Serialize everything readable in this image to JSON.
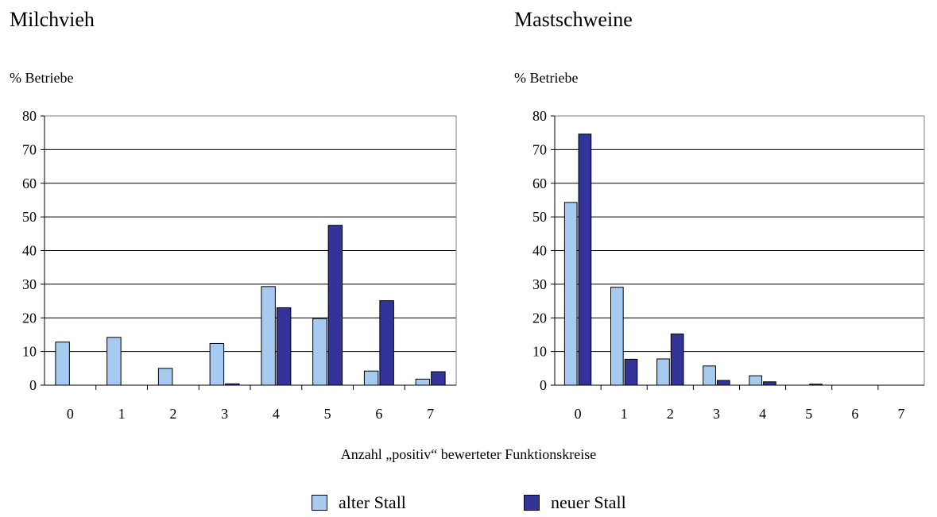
{
  "chart_data": [
    {
      "type": "bar",
      "title": "Milchvieh",
      "ylabel": "% Betriebe",
      "categories": [
        "0",
        "1",
        "2",
        "3",
        "4",
        "5",
        "6",
        "7"
      ],
      "ylim": [
        0,
        80
      ],
      "yticks": [
        0,
        10,
        20,
        30,
        40,
        50,
        60,
        70,
        80
      ],
      "series": [
        {
          "name": "alter Stall",
          "values": [
            12.8,
            14.2,
            5.0,
            12.4,
            29.3,
            19.8,
            4.2,
            1.8
          ]
        },
        {
          "name": "neuer Stall",
          "values": [
            0,
            0,
            0,
            0.4,
            23.0,
            47.5,
            25.1,
            4.0
          ]
        }
      ]
    },
    {
      "type": "bar",
      "title": "Mastschweine",
      "ylabel": "% Betriebe",
      "categories": [
        "0",
        "1",
        "2",
        "3",
        "4",
        "5",
        "6",
        "7"
      ],
      "ylim": [
        0,
        80
      ],
      "yticks": [
        0,
        10,
        20,
        30,
        40,
        50,
        60,
        70,
        80
      ],
      "series": [
        {
          "name": "alter Stall",
          "values": [
            54.3,
            29.1,
            7.8,
            5.7,
            2.8,
            0,
            0,
            0
          ]
        },
        {
          "name": "neuer Stall",
          "values": [
            74.6,
            7.7,
            15.2,
            1.4,
            1.0,
            0.3,
            0,
            0
          ]
        }
      ]
    }
  ],
  "xlabel": "Anzahl „positiv“ bewerteter Funktionskreise",
  "legend": {
    "items": [
      {
        "label": "alter Stall",
        "color": "#a6caf0"
      },
      {
        "label": "neuer Stall",
        "color": "#333399"
      }
    ]
  }
}
